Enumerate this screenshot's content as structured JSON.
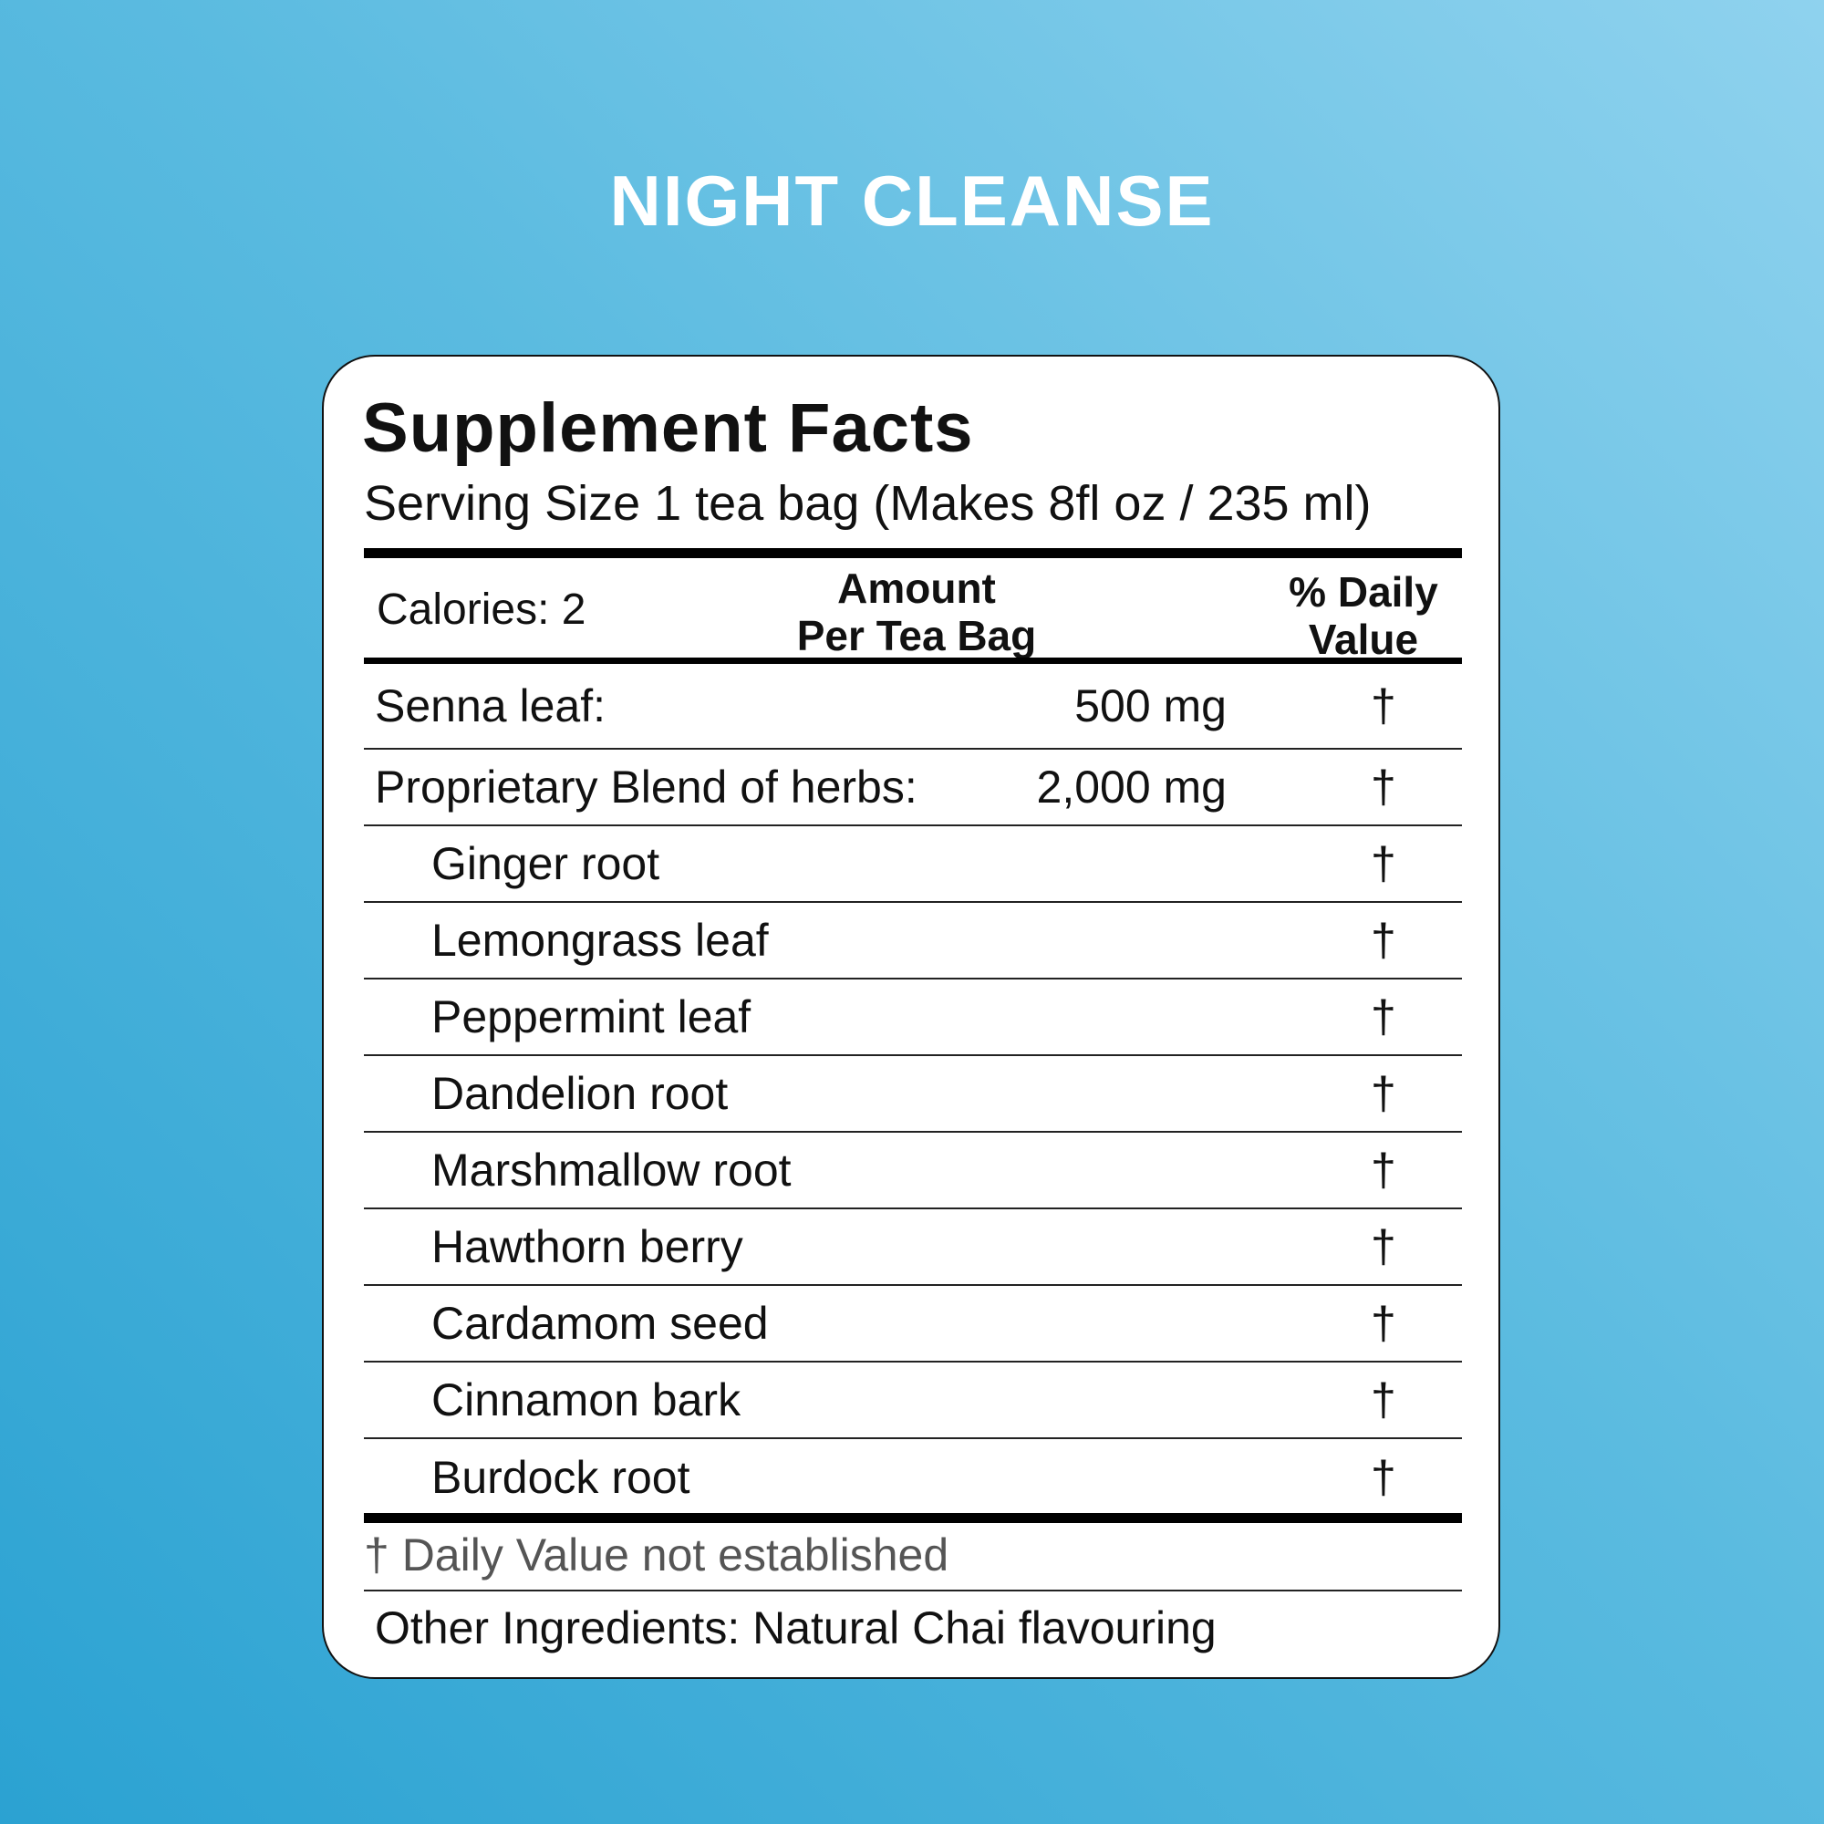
{
  "brand_title": "NIGHT CLEANSE",
  "label": {
    "title": "Supplement Facts",
    "serving_size": "Serving Size 1 tea bag (Makes 8fl oz / 235 ml)",
    "calories": "Calories: 2",
    "header_amount_line1": "Amount",
    "header_amount_line2": "Per Tea Bag",
    "header_dv_line1": "% Daily",
    "header_dv_line2": "Value",
    "rows": [
      {
        "name": "Senna leaf:",
        "amount": "500 mg",
        "dv": "†"
      },
      {
        "name": "Proprietary Blend of herbs:",
        "amount": "2,000 mg",
        "dv": "†"
      },
      {
        "name": "Ginger root",
        "amount": "",
        "dv": "†"
      },
      {
        "name": "Lemongrass leaf",
        "amount": "",
        "dv": "†"
      },
      {
        "name": "Peppermint leaf",
        "amount": "",
        "dv": "†"
      },
      {
        "name": "Dandelion root",
        "amount": "",
        "dv": "†"
      },
      {
        "name": "Marshmallow root",
        "amount": "",
        "dv": "†"
      },
      {
        "name": "Hawthorn berry",
        "amount": "",
        "dv": "†"
      },
      {
        "name": "Cardamom seed",
        "amount": "",
        "dv": "†"
      },
      {
        "name": "Cinnamon bark",
        "amount": "",
        "dv": "†"
      },
      {
        "name": "Burdock root",
        "amount": "",
        "dv": "†"
      }
    ],
    "footnote": "† Daily Value not established",
    "other_ingredients": "Other Ingredients: Natural Chai flavouring"
  },
  "colors": {
    "background_light": "#8fd2ee",
    "background_dark": "#2ba2d2",
    "card": "#ffffff",
    "text": "#111111"
  }
}
